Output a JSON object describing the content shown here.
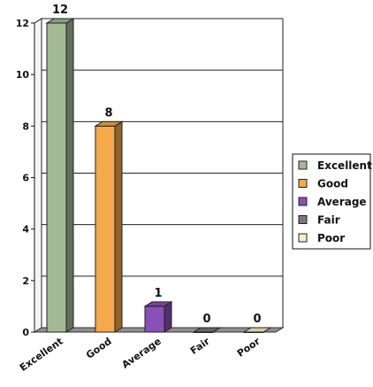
{
  "chart_data": {
    "type": "bar",
    "categories": [
      "Excellent",
      "Good",
      "Average",
      "Fair",
      "Poor"
    ],
    "values": [
      12,
      8,
      1,
      0,
      0
    ],
    "ylim": [
      0,
      12
    ],
    "yticks": [
      0,
      2,
      4,
      6,
      8,
      10,
      12
    ],
    "grid": true,
    "legend_position": "right",
    "colors": [
      "#A3B994",
      "#F4A94A",
      "#8B4FB8",
      "#7E7384",
      "#F5F2C0"
    ],
    "data_labels": [
      12,
      8,
      1,
      0,
      0
    ]
  }
}
